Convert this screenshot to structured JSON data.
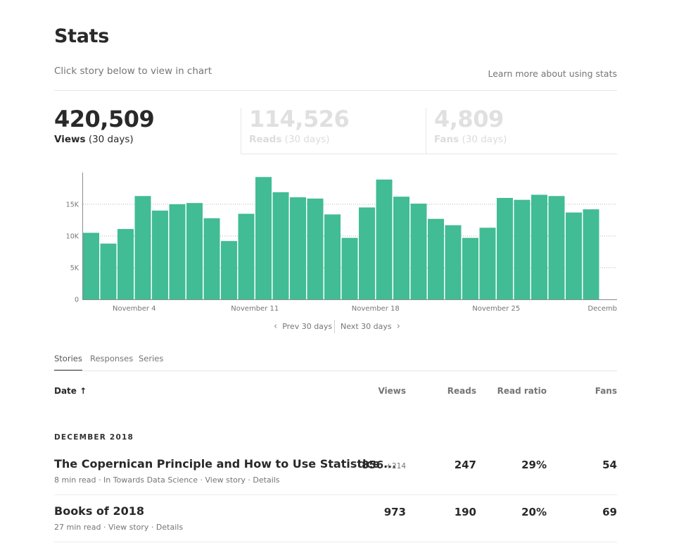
{
  "page": {
    "title": "Stats",
    "subtitle": "Click story below to view in chart",
    "learn_more": "Learn more about using stats"
  },
  "metrics": {
    "views": {
      "value": "420,509",
      "label": "Views",
      "period": "(30 days)"
    },
    "reads": {
      "value": "114,526",
      "label": "Reads",
      "period": "(30 days)"
    },
    "fans": {
      "value": "4,809",
      "label": "Fans",
      "period": "(30 days)"
    }
  },
  "colors": {
    "bar": "#41bc94",
    "text": "#292929",
    "muted": "#757575"
  },
  "chart_data": {
    "type": "bar",
    "ylabels": [
      "0",
      "5K",
      "10K",
      "15K"
    ],
    "yticks": [
      0,
      5000,
      10000,
      15000
    ],
    "ylim": [
      0,
      20000
    ],
    "grid": true,
    "xlabels": [
      "November 4",
      "November 11",
      "November 18",
      "November 25",
      "Decemb"
    ],
    "xlabel_indices": [
      2.5,
      9.5,
      16.5,
      23.5,
      30.5
    ],
    "values": [
      10500,
      8800,
      11100,
      16300,
      14000,
      15000,
      15200,
      12800,
      9200,
      13500,
      19300,
      16900,
      16100,
      15900,
      13400,
      9700,
      14500,
      18900,
      16200,
      15100,
      12700,
      11700,
      9700,
      11300,
      16000,
      15700,
      16500,
      16300,
      13700,
      14200
    ]
  },
  "pager": {
    "prev": "Prev 30 days",
    "next": "Next 30 days"
  },
  "tabs": [
    "Stories",
    "Responses",
    "Series"
  ],
  "table": {
    "headers": {
      "date": "Date",
      "date_sort": "↑",
      "views": "Views",
      "reads": "Reads",
      "read_ratio": "Read ratio",
      "fans": "Fans"
    },
    "month": "DECEMBER 2018",
    "rows": [
      {
        "title": "The Copernican Principle and How to Use Statistics ...",
        "read_time": "8 min read",
        "publication": "In Towards Data Science",
        "view_story": "View story",
        "details": "Details",
        "views": "856",
        "views_delta": "+214",
        "reads": "247",
        "read_ratio": "29%",
        "fans": "54"
      },
      {
        "title": "Books of 2018",
        "read_time": "27 min read",
        "view_story": "View story",
        "details": "Details",
        "views": "973",
        "reads": "190",
        "read_ratio": "20%",
        "fans": "69"
      }
    ]
  }
}
